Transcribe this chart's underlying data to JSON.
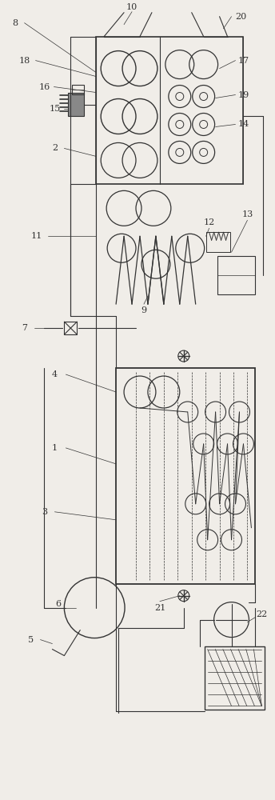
{
  "bg_color": "#f0ede8",
  "line_color": "#333333",
  "fig_width": 3.44,
  "fig_height": 10.0,
  "dpi": 100
}
